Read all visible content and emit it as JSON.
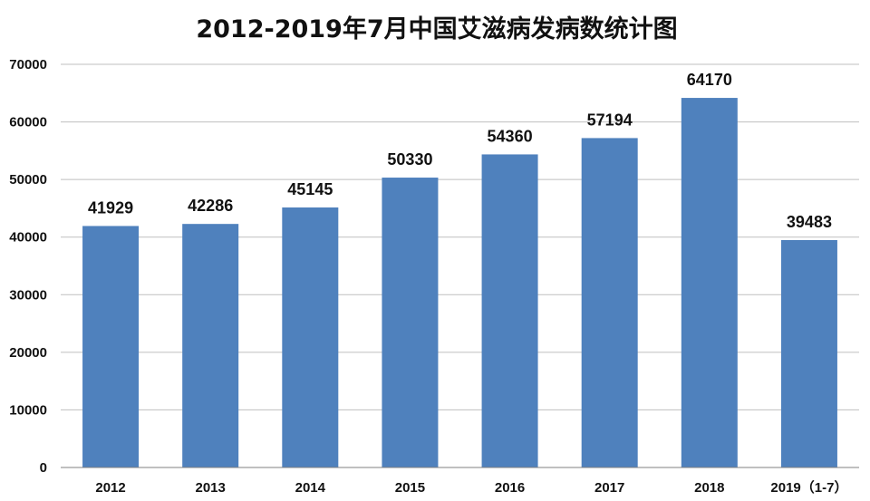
{
  "chart_data": {
    "type": "bar",
    "title": "2012-2019年7月中国艾滋病发病数统计图",
    "xlabel": "",
    "ylabel": "",
    "categories": [
      "2012",
      "2013",
      "2014",
      "2015",
      "2016",
      "2017",
      "2018",
      "2019（1-7）"
    ],
    "values": [
      41929,
      42286,
      45145,
      50330,
      54360,
      57194,
      64170,
      39483
    ],
    "data_labels": [
      "41929",
      "42286",
      "45145",
      "50330",
      "54360",
      "57194",
      "64170",
      "39483"
    ],
    "ylim": [
      0,
      70000
    ],
    "yticks": [
      0,
      10000,
      20000,
      30000,
      40000,
      50000,
      60000,
      70000
    ],
    "ytick_labels": [
      "0",
      "10000",
      "20000",
      "30000",
      "40000",
      "50000",
      "60000",
      "70000"
    ],
    "grid": true,
    "legend": "none",
    "bar_color": "#4f81bd"
  }
}
